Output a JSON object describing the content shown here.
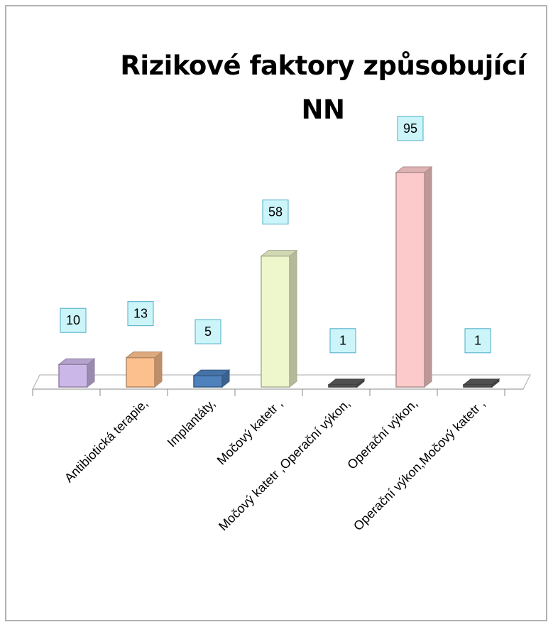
{
  "chart_data": {
    "type": "bar3d",
    "title": "Rizikové faktory způsobující NN",
    "categories": [
      null,
      "Antibiotická terapie,",
      "Implantáty,",
      "Močový katetr ,",
      "Močový katetr ,Operační výkon,",
      "Operační výkon,",
      "Operační výkon,Močový katetr ,"
    ],
    "values": [
      10,
      13,
      5,
      58,
      1,
      95,
      1
    ],
    "colors": [
      "#ccb8e8",
      "#fcc08e",
      "#4f81bd",
      "#eef7cc",
      "#5a5a5a",
      "#fccaca",
      "#5a5a5a"
    ]
  }
}
